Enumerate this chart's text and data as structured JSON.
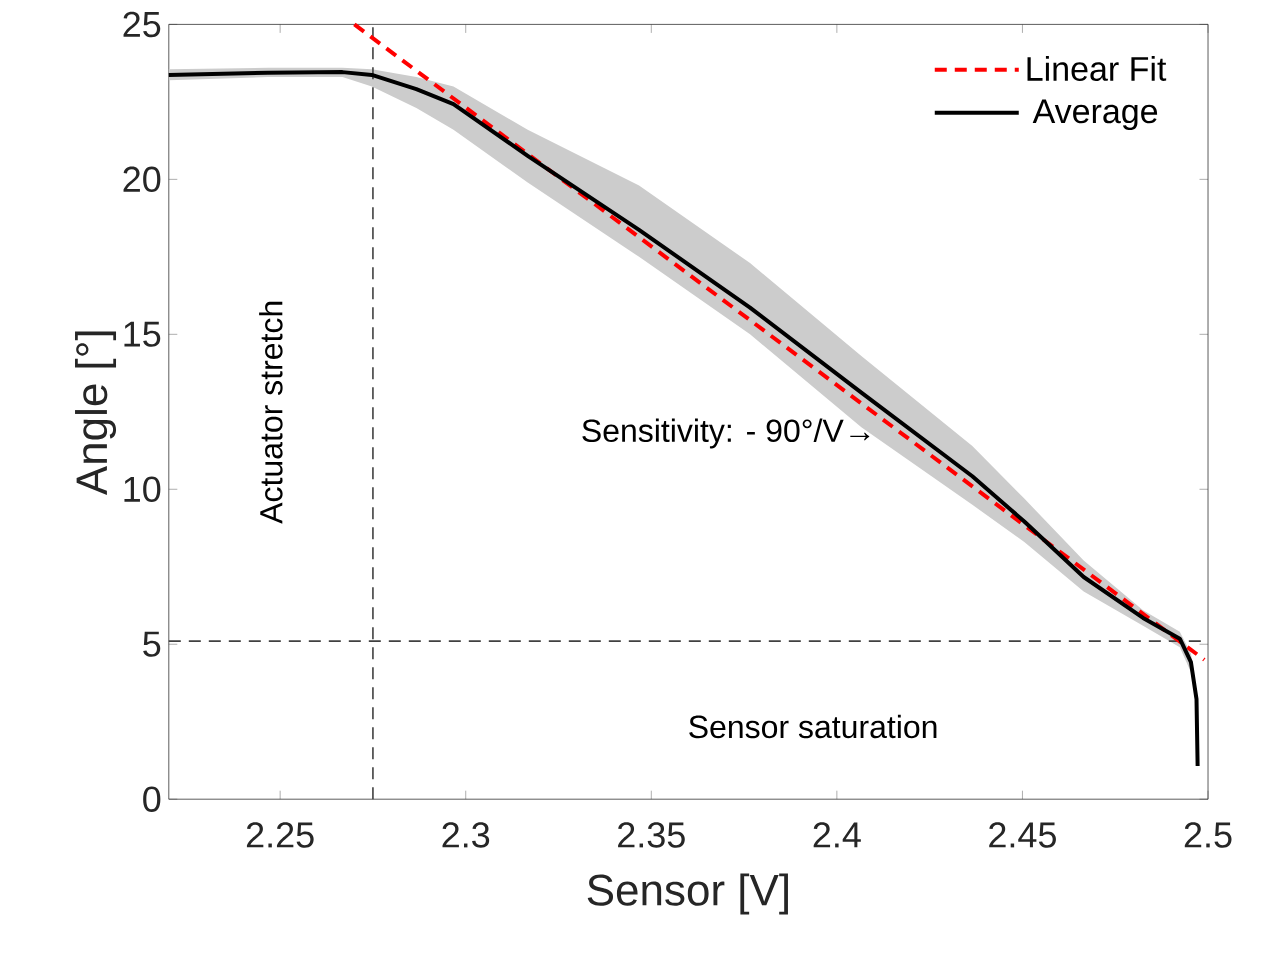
{
  "chart_data": {
    "type": "line",
    "xlabel": "Sensor [V]",
    "ylabel": "Angle [°]",
    "xlim": [
      2.22,
      2.5
    ],
    "ylim": [
      0,
      25
    ],
    "xticks": [
      2.25,
      2.3,
      2.35,
      2.4,
      2.45,
      2.5
    ],
    "yticks": [
      0,
      5,
      10,
      15,
      20,
      25
    ],
    "legend": "top right",
    "grid": false,
    "series": [
      {
        "name": "Linear Fit",
        "color": "#ff0000",
        "line_style": "dashed",
        "x": [
          2.27,
          2.499
        ],
        "values": [
          25,
          4.5
        ]
      },
      {
        "name": "Average",
        "color": "#000000",
        "line_style": "solid",
        "x": [
          2.22,
          2.2467,
          2.2668,
          2.2747,
          2.2867,
          2.2967,
          2.3167,
          2.3467,
          2.3766,
          2.4066,
          2.4365,
          2.4505,
          2.4665,
          2.4825,
          2.4924,
          2.4954,
          2.4969,
          2.4972
        ],
        "values": [
          23.37,
          23.44,
          23.46,
          23.37,
          22.91,
          22.43,
          20.76,
          18.37,
          15.86,
          13.12,
          10.42,
          8.96,
          7.17,
          5.85,
          5.18,
          4.42,
          3.23,
          1.07
        ],
        "lower": [
          23.2,
          23.3,
          23.3,
          23.0,
          22.3,
          21.6,
          19.9,
          17.5,
          15.0,
          12.0,
          9.5,
          8.3,
          6.7,
          5.6,
          4.9,
          4.1,
          3.0,
          0.9
        ],
        "upper": [
          23.55,
          23.6,
          23.6,
          23.55,
          23.3,
          23.0,
          21.6,
          19.8,
          17.3,
          14.3,
          11.4,
          9.7,
          7.7,
          6.1,
          5.4,
          4.7,
          3.5,
          1.3
        ]
      }
    ],
    "ref_lines": [
      {
        "axis": "x",
        "value": 2.275,
        "label": "Actuator stretch",
        "color": "#404040",
        "line_style": "dashed"
      },
      {
        "axis": "y",
        "value": 5.1,
        "label": "Sensor saturation",
        "color": "#404040",
        "line_style": "dashed"
      }
    ],
    "annotations": [
      {
        "text": "Sensitivity: - 90°/V→",
        "x": 2.4106,
        "y": 11.8
      }
    ]
  }
}
